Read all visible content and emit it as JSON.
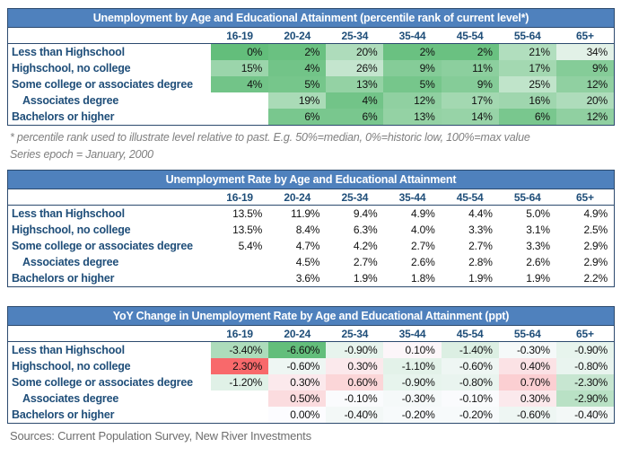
{
  "palette": {
    "title_bar_bg": "#4f81bd",
    "title_bar_text": "#ffffff",
    "table_border": "#2c4a6e",
    "label_text": "#1f4e79",
    "note_text": "#7f7f7f",
    "scale_green": "#63be7b",
    "scale_green_light_end": "#e2f1e7",
    "scale_red": "#f8696b",
    "scale_white": "#fcfcff"
  },
  "chart_data": [
    {
      "type": "heatmap",
      "title": "Unemployment by Age and Educational Attainment (percentile rank of current level*)",
      "columns": [
        "16-19",
        "20-24",
        "25-34",
        "35-44",
        "45-54",
        "55-64",
        "65+"
      ],
      "color_scale": {
        "mode": "green-to-white",
        "domain": [
          0,
          34
        ]
      },
      "rows": [
        {
          "label": "Less than Highschool",
          "indent": false,
          "values": [
            0,
            2,
            20,
            2,
            2,
            21,
            34
          ],
          "display": [
            "0%",
            "2%",
            "20%",
            "2%",
            "2%",
            "21%",
            "34%"
          ]
        },
        {
          "label": "Highschool, no college",
          "indent": false,
          "values": [
            15,
            4,
            26,
            9,
            11,
            17,
            9
          ],
          "display": [
            "15%",
            "4%",
            "26%",
            "9%",
            "11%",
            "17%",
            "9%"
          ]
        },
        {
          "label": "Some college or associates degree",
          "indent": false,
          "values": [
            4,
            5,
            13,
            5,
            9,
            25,
            12
          ],
          "display": [
            "4%",
            "5%",
            "13%",
            "5%",
            "9%",
            "25%",
            "12%"
          ]
        },
        {
          "label": "Associates degree",
          "indent": true,
          "values": [
            null,
            19,
            4,
            12,
            17,
            16,
            20
          ],
          "display": [
            "",
            "19%",
            "4%",
            "12%",
            "17%",
            "16%",
            "20%"
          ]
        },
        {
          "label": "Bachelors or higher",
          "indent": false,
          "values": [
            null,
            6,
            6,
            13,
            14,
            6,
            12
          ],
          "display": [
            "",
            "6%",
            "6%",
            "13%",
            "14%",
            "6%",
            "12%"
          ]
        }
      ]
    },
    {
      "type": "table",
      "title": "Unemployment Rate by Age and Educational Attainment",
      "columns": [
        "16-19",
        "20-24",
        "25-34",
        "35-44",
        "45-54",
        "55-64",
        "65+"
      ],
      "color_scale": {
        "mode": "none"
      },
      "rows": [
        {
          "label": "Less than Highschool",
          "indent": false,
          "values": [
            13.5,
            11.9,
            9.4,
            4.9,
            4.4,
            5.0,
            4.9
          ],
          "display": [
            "13.5%",
            "11.9%",
            "9.4%",
            "4.9%",
            "4.4%",
            "5.0%",
            "4.9%"
          ]
        },
        {
          "label": "Highschool, no college",
          "indent": false,
          "values": [
            13.5,
            8.4,
            6.3,
            4.0,
            3.3,
            3.1,
            2.5
          ],
          "display": [
            "13.5%",
            "8.4%",
            "6.3%",
            "4.0%",
            "3.3%",
            "3.1%",
            "2.5%"
          ]
        },
        {
          "label": "Some college or associates degree",
          "indent": false,
          "values": [
            5.4,
            4.7,
            4.2,
            2.7,
            2.7,
            3.3,
            2.9
          ],
          "display": [
            "5.4%",
            "4.7%",
            "4.2%",
            "2.7%",
            "2.7%",
            "3.3%",
            "2.9%"
          ]
        },
        {
          "label": "Associates degree",
          "indent": true,
          "values": [
            null,
            4.5,
            2.7,
            2.6,
            2.8,
            2.6,
            2.9
          ],
          "display": [
            "",
            "4.5%",
            "2.7%",
            "2.6%",
            "2.8%",
            "2.6%",
            "2.9%"
          ]
        },
        {
          "label": "Bachelors or higher",
          "indent": false,
          "values": [
            null,
            3.6,
            1.9,
            1.8,
            1.9,
            1.9,
            2.2
          ],
          "display": [
            "",
            "3.6%",
            "1.9%",
            "1.8%",
            "1.9%",
            "1.9%",
            "2.2%"
          ]
        }
      ]
    },
    {
      "type": "heatmap",
      "title": "YoY Change in Unemployment Rate by Age and Educational Attainment (ppt)",
      "columns": [
        "16-19",
        "20-24",
        "25-34",
        "35-44",
        "45-54",
        "55-64",
        "65+"
      ],
      "color_scale": {
        "mode": "diverging",
        "domain": [
          -6.6,
          0,
          2.3
        ]
      },
      "rows": [
        {
          "label": "Less than Highschool",
          "indent": false,
          "values": [
            -3.4,
            -6.6,
            -0.9,
            0.1,
            -1.4,
            -0.3,
            -0.9
          ],
          "display": [
            "-3.40%",
            "-6.60%",
            "-0.90%",
            "0.10%",
            "-1.40%",
            "-0.30%",
            "-0.90%"
          ]
        },
        {
          "label": "Highschool, no college",
          "indent": false,
          "values": [
            2.3,
            -0.6,
            0.3,
            -1.1,
            -0.6,
            0.4,
            -0.8
          ],
          "display": [
            "2.30%",
            "-0.60%",
            "0.30%",
            "-1.10%",
            "-0.60%",
            "0.40%",
            "-0.80%"
          ]
        },
        {
          "label": "Some college or associates degree",
          "indent": false,
          "values": [
            -1.2,
            0.3,
            0.6,
            -0.9,
            -0.8,
            0.7,
            -2.3
          ],
          "display": [
            "-1.20%",
            "0.30%",
            "0.60%",
            "-0.90%",
            "-0.80%",
            "0.70%",
            "-2.30%"
          ]
        },
        {
          "label": "Associates degree",
          "indent": true,
          "values": [
            null,
            0.5,
            -0.1,
            -0.3,
            -0.1,
            0.3,
            -2.9
          ],
          "display": [
            "",
            "0.50%",
            "-0.10%",
            "-0.30%",
            "-0.10%",
            "0.30%",
            "-2.90%"
          ]
        },
        {
          "label": "Bachelors or higher",
          "indent": false,
          "values": [
            null,
            0.0,
            -0.4,
            -0.2,
            -0.2,
            -0.6,
            -0.4
          ],
          "display": [
            "",
            "0.00%",
            "-0.40%",
            "-0.20%",
            "-0.20%",
            "-0.60%",
            "-0.40%"
          ]
        }
      ]
    }
  ],
  "footnotes": [
    "* percentile rank used to illustrate level relative to past. E.g. 50%=median, 0%=historic low, 100%=max value",
    "Series epoch = January, 2000"
  ],
  "sources_label": "Sources: Current Population Survey, New River Investments"
}
